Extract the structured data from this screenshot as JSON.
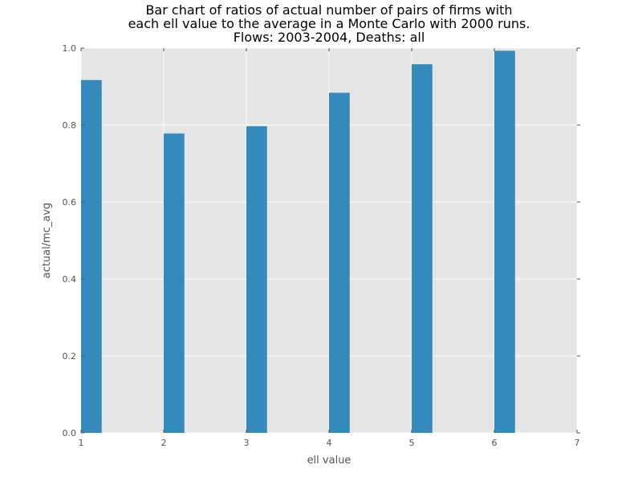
{
  "chart_data": {
    "type": "bar",
    "title_lines": [
      "Bar chart of ratios of actual number of pairs of firms with",
      "each ell value to the average in a Monte Carlo with 2000 runs.",
      "Flows: 2003-2004,  Deaths: all"
    ],
    "xlabel": "ell value",
    "ylabel": "actual/mc_avg",
    "x": [
      1,
      2,
      3,
      4,
      5,
      6
    ],
    "values": [
      0.917,
      0.778,
      0.797,
      0.884,
      0.958,
      0.993
    ],
    "bar_width": 0.25,
    "xlim": [
      1,
      7
    ],
    "ylim": [
      0.0,
      1.0
    ],
    "xticks": [
      "1",
      "2",
      "3",
      "4",
      "5",
      "6",
      "7"
    ],
    "yticks": [
      "0.0",
      "0.2",
      "0.4",
      "0.6",
      "0.8",
      "1.0"
    ],
    "grid": true,
    "colors": {
      "bar": "#348abd",
      "plot_bg": "#e5e5e5",
      "grid": "#ffffff"
    }
  }
}
